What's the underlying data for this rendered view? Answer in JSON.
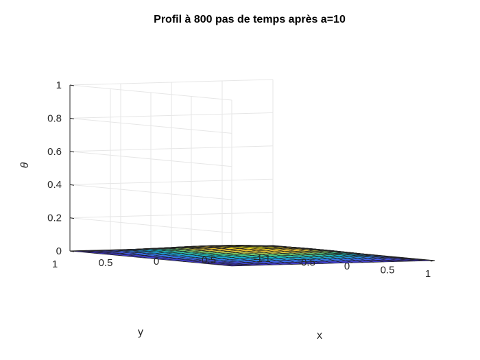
{
  "chart_data": {
    "type": "surface",
    "title": "Profil à 800 pas de temps après a=10",
    "xlabel": "x",
    "ylabel": "y",
    "zlabel": "θ",
    "xlim": [
      -1,
      1
    ],
    "ylim": [
      -1,
      1
    ],
    "zlim": [
      0,
      1
    ],
    "xticks": [
      -1,
      -0.5,
      0,
      0.5,
      1
    ],
    "xtick_labels": [
      "-1",
      "-0.5",
      "0",
      "0.5",
      "1"
    ],
    "yticks": [
      -1,
      -0.5,
      0,
      0.5,
      1
    ],
    "ytick_labels": [
      "-1",
      "-0.5",
      "0",
      "0.5",
      "1"
    ],
    "zticks": [
      0,
      0.2,
      0.4,
      0.6,
      0.8,
      1
    ],
    "ztick_labels": [
      "0",
      "0.2",
      "0.4",
      "0.6",
      "0.8",
      "1"
    ],
    "grid": true,
    "colormap": "parula",
    "grid_points": 21,
    "surface": {
      "description": "theta(x,y) = peak * cos(pi*x/2) * cos(pi*y/2) on a 21x21 grid",
      "peak": 0.055,
      "zero_on_boundary": true
    },
    "grid_color": "#e6e6e6",
    "axis_color": "#262626",
    "edge_color": "#202020"
  }
}
